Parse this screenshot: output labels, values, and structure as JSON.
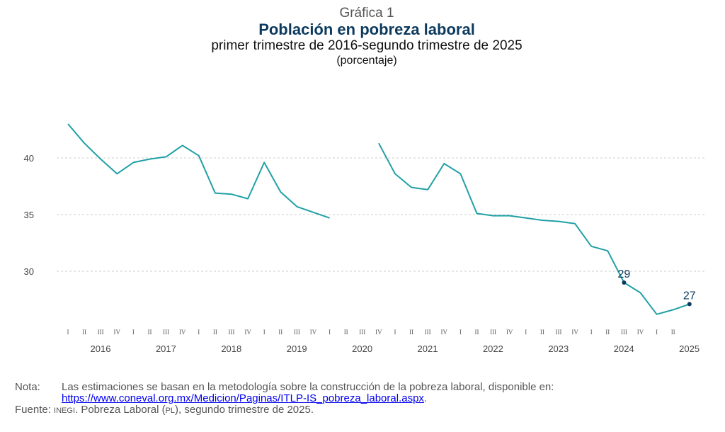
{
  "header": {
    "supertitle": "Gráfica 1",
    "title": "Población en pobreza laboral",
    "subtitle": "primer trimestre de 2016-segundo trimestre de 2025",
    "unit": "(porcentaje)"
  },
  "chart_data": {
    "type": "line",
    "title": "Población en pobreza laboral",
    "ylabel": "porcentaje",
    "ylim": [
      25,
      45
    ],
    "yticks": [
      30,
      35,
      40
    ],
    "grid": true,
    "line_color": "#21a0a6",
    "marker_color": "#0b3a5e",
    "x_years": [
      "2016",
      "2017",
      "2018",
      "2019",
      "2020",
      "2021",
      "2022",
      "2023",
      "2024",
      "2025"
    ],
    "quarter_labels": [
      "I",
      "II",
      "III",
      "IV"
    ],
    "segments": [
      [
        {
          "q": "2016-I",
          "value": 43.0
        },
        {
          "q": "2016-II",
          "value": 41.3
        },
        {
          "q": "2016-III",
          "value": 39.9
        },
        {
          "q": "2016-IV",
          "value": 38.6
        },
        {
          "q": "2017-I",
          "value": 39.6
        },
        {
          "q": "2017-II",
          "value": 39.9
        },
        {
          "q": "2017-III",
          "value": 40.1
        },
        {
          "q": "2017-IV",
          "value": 41.1
        },
        {
          "q": "2018-I",
          "value": 40.2
        },
        {
          "q": "2018-II",
          "value": 36.9
        },
        {
          "q": "2018-III",
          "value": 36.8
        },
        {
          "q": "2018-IV",
          "value": 36.4
        },
        {
          "q": "2019-I",
          "value": 39.6
        },
        {
          "q": "2019-II",
          "value": 37.0
        },
        {
          "q": "2019-III",
          "value": 35.7
        },
        {
          "q": "2019-IV",
          "value": 35.2
        },
        {
          "q": "2020-I",
          "value": 34.7
        }
      ],
      [
        {
          "q": "2020-IV",
          "value": 41.3
        },
        {
          "q": "2021-I",
          "value": 38.6
        },
        {
          "q": "2021-II",
          "value": 37.4
        },
        {
          "q": "2021-III",
          "value": 37.2
        },
        {
          "q": "2021-IV",
          "value": 39.5
        },
        {
          "q": "2022-I",
          "value": 38.6
        },
        {
          "q": "2022-II",
          "value": 35.1
        },
        {
          "q": "2022-III",
          "value": 34.9
        },
        {
          "q": "2022-IV",
          "value": 34.9
        },
        {
          "q": "2023-I",
          "value": 34.7
        },
        {
          "q": "2023-II",
          "value": 34.5
        },
        {
          "q": "2023-III",
          "value": 34.4
        },
        {
          "q": "2023-IV",
          "value": 34.2
        },
        {
          "q": "2024-I",
          "value": 32.2
        },
        {
          "q": "2024-II",
          "value": 31.8
        },
        {
          "q": "2024-III",
          "value": 29.0
        },
        {
          "q": "2024-IV",
          "value": 28.1
        },
        {
          "q": "2025-I",
          "value": 26.2
        },
        {
          "q": "2025-II",
          "value": 26.6
        },
        {
          "q": "2025-III",
          "value": 27.1
        }
      ]
    ],
    "annotations": [
      {
        "q": "2024-III",
        "value": 29.0,
        "label": "29"
      },
      {
        "q": "2025-III",
        "value": 27.1,
        "label": "27"
      }
    ]
  },
  "footer": {
    "note_label": "Nota:",
    "note_text": "Las estimaciones se basan en la metodología sobre la construcción de la pobreza laboral, disponible en:",
    "note_link": "https://www.coneval.org.mx/Medicion/Paginas/ITLP-IS_pobreza_laboral.aspx",
    "note_period": ".",
    "source_label": "Fuente:",
    "source_org": "inegi",
    "source_text": ". Pobreza Laboral (",
    "source_abbr": "pl",
    "source_end": "), segundo trimestre de 2025."
  }
}
